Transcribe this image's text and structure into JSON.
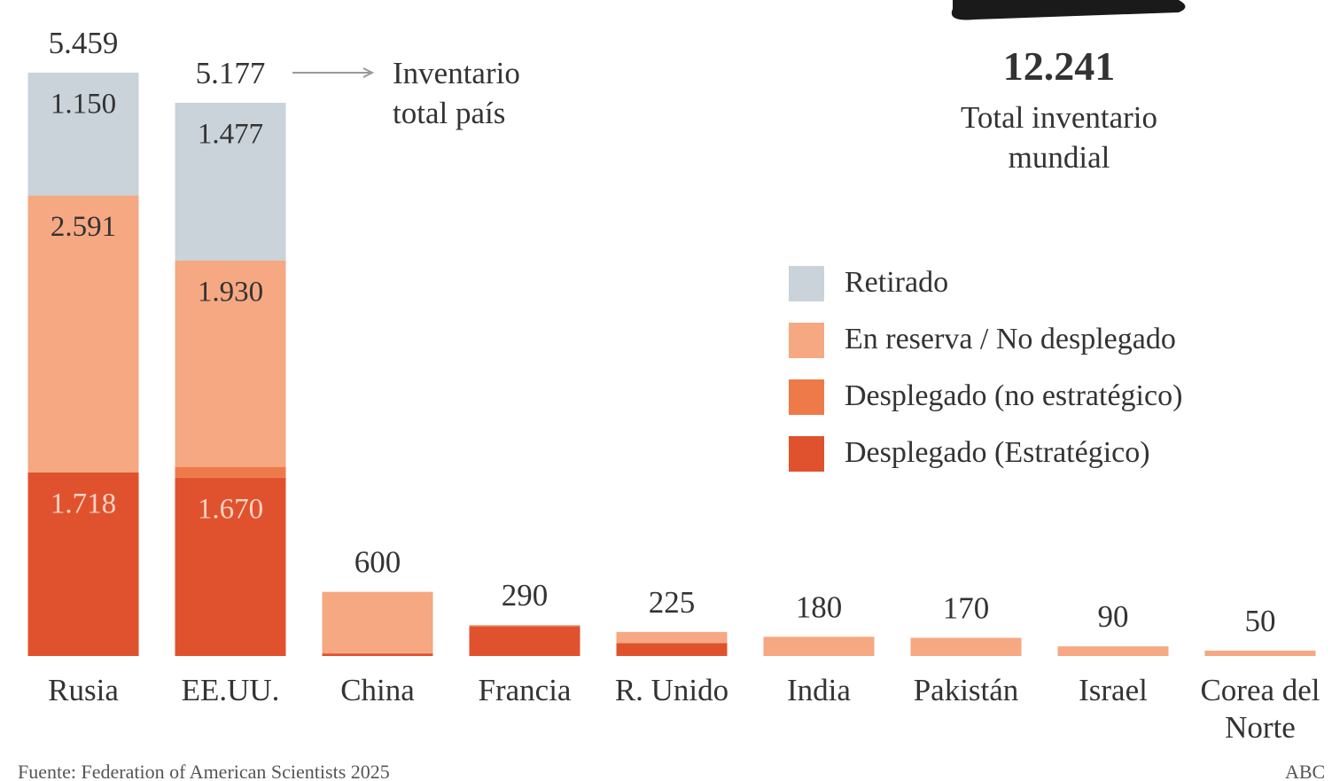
{
  "chart_data": {
    "type": "stacked_bar",
    "categories": [
      "Rusia",
      "EE.UU.",
      "China",
      "Francia",
      "R. Unido",
      "India",
      "Pakistán",
      "Israel",
      "Corea del Norte"
    ],
    "series": [
      {
        "name": "Desplegado (Estratégico)",
        "color": "#e0522e",
        "values": [
          1718,
          1670,
          24,
          280,
          120,
          0,
          0,
          0,
          0
        ],
        "value_labels": [
          "1.718",
          "1.670",
          null,
          null,
          null,
          null,
          null,
          null,
          null
        ]
      },
      {
        "name": "Desplegado (no estratégico)",
        "color": "#ee7a4a",
        "values": [
          0,
          100,
          0,
          0,
          0,
          0,
          0,
          0,
          0
        ],
        "value_labels": [
          null,
          null,
          null,
          null,
          null,
          null,
          null,
          null,
          null
        ]
      },
      {
        "name": "En reserva / No desplegado",
        "color": "#f5a882",
        "values": [
          2591,
          1930,
          576,
          10,
          105,
          180,
          170,
          90,
          50
        ],
        "value_labels": [
          "2.591",
          "1.930",
          null,
          null,
          null,
          null,
          null,
          null,
          null
        ]
      },
      {
        "name": "Retirado",
        "color": "#c9d3d9",
        "values": [
          1150,
          1477,
          0,
          0,
          0,
          0,
          0,
          0,
          0
        ],
        "value_labels": [
          "1.150",
          "1.477",
          null,
          null,
          null,
          null,
          null,
          null,
          null
        ]
      }
    ],
    "totals": {
      "values": [
        5459,
        5177,
        600,
        290,
        225,
        180,
        170,
        90,
        50
      ],
      "value_labels": [
        "5.459",
        "5.177",
        "600",
        "290",
        "225",
        "180",
        "170",
        "90",
        "50"
      ]
    },
    "ylim": [
      0,
      5500
    ],
    "legend": "right",
    "annotations": {
      "country_total": "Inventario total país",
      "world_total": "12.241",
      "world_total_label": "Total inventario mundial"
    },
    "source": "Fuente: Federation of American Scientists 2025",
    "credit": "ABC"
  }
}
